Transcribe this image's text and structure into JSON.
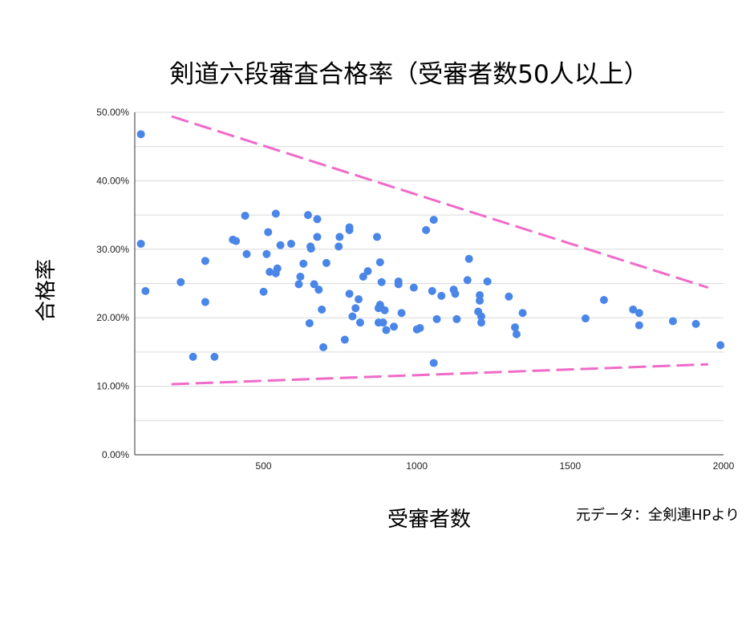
{
  "chart_data": {
    "type": "scatter",
    "title": "剣道六段審査合格率（受審者数50人以上）",
    "xlabel": "受審者数",
    "ylabel": "合格率",
    "source_note": "元データ：全剣連HPより",
    "xlim": [
      80,
      2000
    ],
    "ylim": [
      0,
      50
    ],
    "x_ticks": [
      500,
      1000,
      1500,
      2000
    ],
    "x_tick_labels": [
      "500",
      "1000",
      "1500",
      "2000"
    ],
    "y_ticks": [
      0,
      10,
      20,
      30,
      40,
      50
    ],
    "y_tick_labels": [
      "0.00%",
      "10.00%",
      "20.00%",
      "30.00%",
      "40.00%",
      "50.00%"
    ],
    "grid": true,
    "colors": {
      "points": "#4a86e8",
      "trend_lines": "#f06ac8",
      "grid": "#d9d9d9"
    },
    "series": [
      {
        "points": [
          [
            100,
            46.8
          ],
          [
            100,
            30.8
          ],
          [
            115,
            23.9
          ],
          [
            230,
            25.2
          ],
          [
            270,
            14.3
          ],
          [
            310,
            28.3
          ],
          [
            310,
            22.3
          ],
          [
            340,
            14.3
          ],
          [
            400,
            31.4
          ],
          [
            410,
            31.2
          ],
          [
            440,
            34.9
          ],
          [
            445,
            29.3
          ],
          [
            500,
            23.8
          ],
          [
            510,
            29.3
          ],
          [
            515,
            32.5
          ],
          [
            520,
            26.7
          ],
          [
            540,
            35.2
          ],
          [
            540,
            26.5
          ],
          [
            545,
            27.2
          ],
          [
            555,
            30.6
          ],
          [
            590,
            30.8
          ],
          [
            615,
            24.9
          ],
          [
            620,
            26.0
          ],
          [
            630,
            27.9
          ],
          [
            645,
            35.0
          ],
          [
            650,
            19.2
          ],
          [
            653,
            30.4
          ],
          [
            655,
            30.1
          ],
          [
            665,
            24.9
          ],
          [
            675,
            31.8
          ],
          [
            675,
            34.4
          ],
          [
            680,
            24.1
          ],
          [
            690,
            21.2
          ],
          [
            695,
            15.7
          ],
          [
            705,
            28.0
          ],
          [
            745,
            30.4
          ],
          [
            748,
            31.8
          ],
          [
            765,
            16.8
          ],
          [
            780,
            33.2
          ],
          [
            780,
            32.8
          ],
          [
            780,
            23.5
          ],
          [
            790,
            20.2
          ],
          [
            800,
            21.4
          ],
          [
            810,
            22.7
          ],
          [
            815,
            19.3
          ],
          [
            825,
            26.0
          ],
          [
            840,
            26.8
          ],
          [
            870,
            31.8
          ],
          [
            875,
            21.4
          ],
          [
            875,
            19.3
          ],
          [
            880,
            28.1
          ],
          [
            880,
            21.9
          ],
          [
            885,
            25.2
          ],
          [
            890,
            19.3
          ],
          [
            895,
            21.1
          ],
          [
            900,
            18.2
          ],
          [
            925,
            18.7
          ],
          [
            940,
            24.9
          ],
          [
            940,
            25.3
          ],
          [
            950,
            20.7
          ],
          [
            990,
            24.4
          ],
          [
            1000,
            18.3
          ],
          [
            1010,
            18.5
          ],
          [
            1030,
            32.8
          ],
          [
            1050,
            23.9
          ],
          [
            1055,
            34.3
          ],
          [
            1055,
            13.4
          ],
          [
            1065,
            19.8
          ],
          [
            1080,
            23.2
          ],
          [
            1120,
            24.1
          ],
          [
            1125,
            23.5
          ],
          [
            1130,
            19.8
          ],
          [
            1165,
            25.5
          ],
          [
            1170,
            28.6
          ],
          [
            1200,
            20.9
          ],
          [
            1205,
            23.3
          ],
          [
            1205,
            22.5
          ],
          [
            1210,
            20.2
          ],
          [
            1210,
            19.3
          ],
          [
            1230,
            25.3
          ],
          [
            1300,
            23.1
          ],
          [
            1320,
            18.6
          ],
          [
            1325,
            17.6
          ],
          [
            1345,
            20.7
          ],
          [
            1550,
            19.9
          ],
          [
            1610,
            22.6
          ],
          [
            1705,
            21.2
          ],
          [
            1725,
            20.7
          ],
          [
            1725,
            18.9
          ],
          [
            1835,
            19.5
          ],
          [
            1910,
            19.1
          ],
          [
            1990,
            16.0
          ]
        ]
      }
    ],
    "trend_lines": [
      {
        "from": [
          200,
          49.4
        ],
        "to": [
          1950,
          24.4
        ]
      },
      {
        "from": [
          200,
          10.3
        ],
        "to": [
          1950,
          13.2
        ]
      }
    ]
  }
}
